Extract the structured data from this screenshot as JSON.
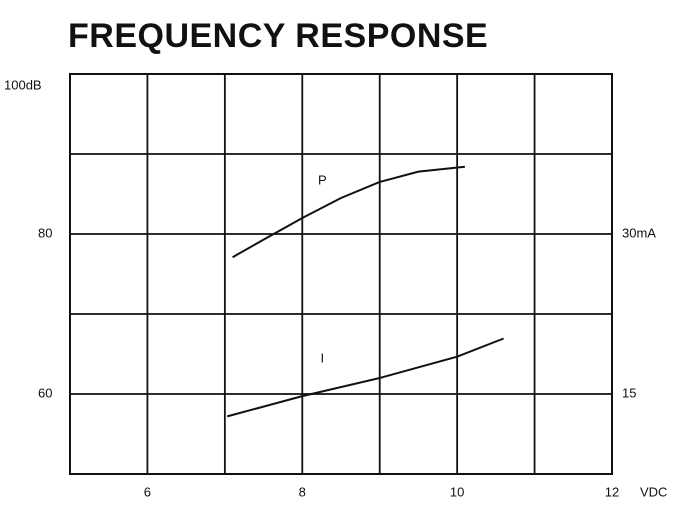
{
  "chart_data": {
    "type": "line",
    "title": "FREQUENCY RESPONSE",
    "xlabel": "VDC",
    "xlim": [
      5,
      12
    ],
    "xticks": [
      6,
      8,
      10,
      12
    ],
    "xgrid": [
      6,
      7,
      8,
      9,
      10,
      11
    ],
    "ylim": [
      50,
      100
    ],
    "yticks": [
      60,
      80,
      {
        "value": 100,
        "label": "100dB"
      }
    ],
    "ygrid": [
      60,
      70,
      80,
      90
    ],
    "y2lim": [
      7.5,
      45
    ],
    "y2ticks": [
      15,
      {
        "value": 30,
        "label": "30mA"
      }
    ],
    "grid": true,
    "series": [
      {
        "name": "P",
        "color": "#111111",
        "x": [
          7.1,
          7.5,
          8,
          8.5,
          9,
          9.5,
          10.1
        ],
        "values": [
          77.1,
          79.3,
          82,
          84.5,
          86.5,
          87.8,
          88.4
        ]
      },
      {
        "name": "I",
        "color": "#111111",
        "axis": "y2",
        "x": [
          7.03,
          8,
          9,
          10,
          10.6
        ],
        "values": [
          12.9,
          14.8,
          16.5,
          18.5,
          20.2
        ]
      }
    ]
  }
}
